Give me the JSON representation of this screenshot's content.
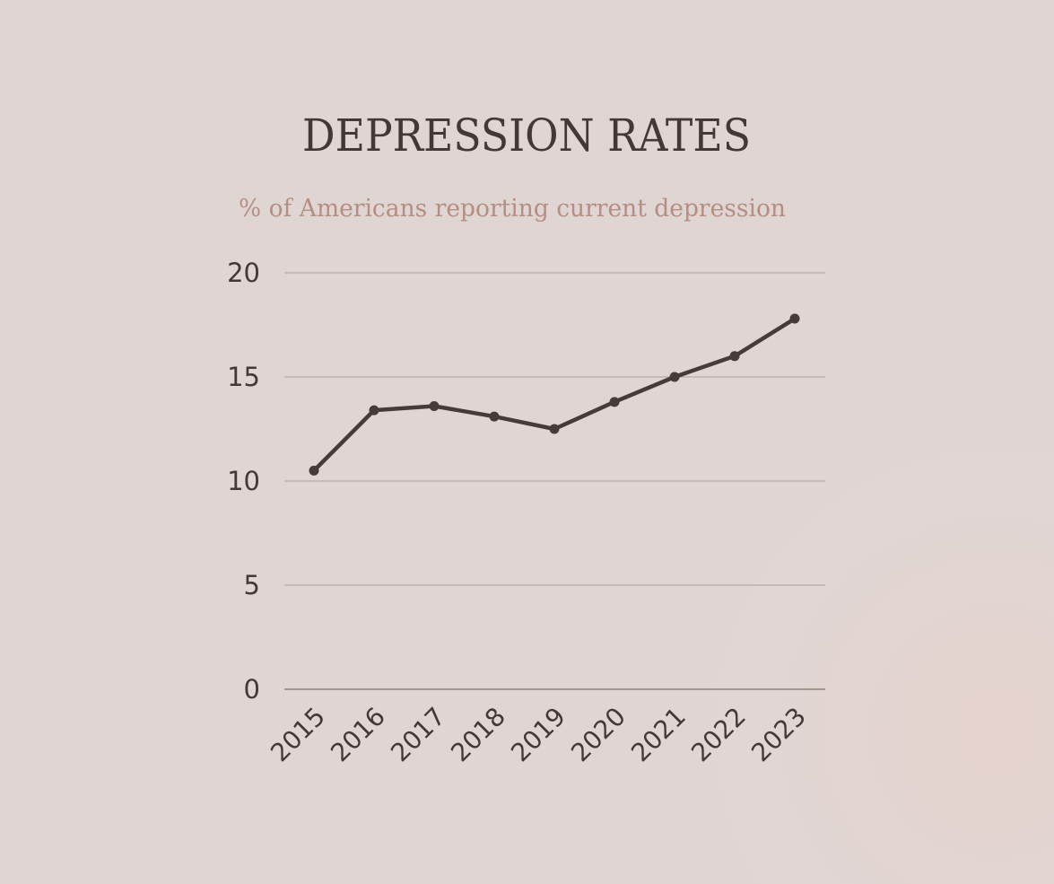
{
  "colors": {
    "background": "#dfd6d4",
    "title": "#433838",
    "subtitle": "#b78d82",
    "line": "#453b3a",
    "grid": "#b9a9a7"
  },
  "chart_data": {
    "type": "line",
    "title": "DEPRESSION RATES",
    "subtitle": "% of Americans reporting current depression",
    "xlabel": "",
    "ylabel": "",
    "x": [
      "2015",
      "2016",
      "2017",
      "2018",
      "2019",
      "2020",
      "2021",
      "2022",
      "2023"
    ],
    "series": [
      {
        "values": [
          10.5,
          13.4,
          13.6,
          13.1,
          12.5,
          13.8,
          15.0,
          16.0,
          17.8
        ]
      }
    ],
    "ylim": [
      0,
      20
    ],
    "yticks": [
      "0",
      "5",
      "10",
      "15",
      "20"
    ],
    "grid": true,
    "legend": "none",
    "markers": true
  }
}
